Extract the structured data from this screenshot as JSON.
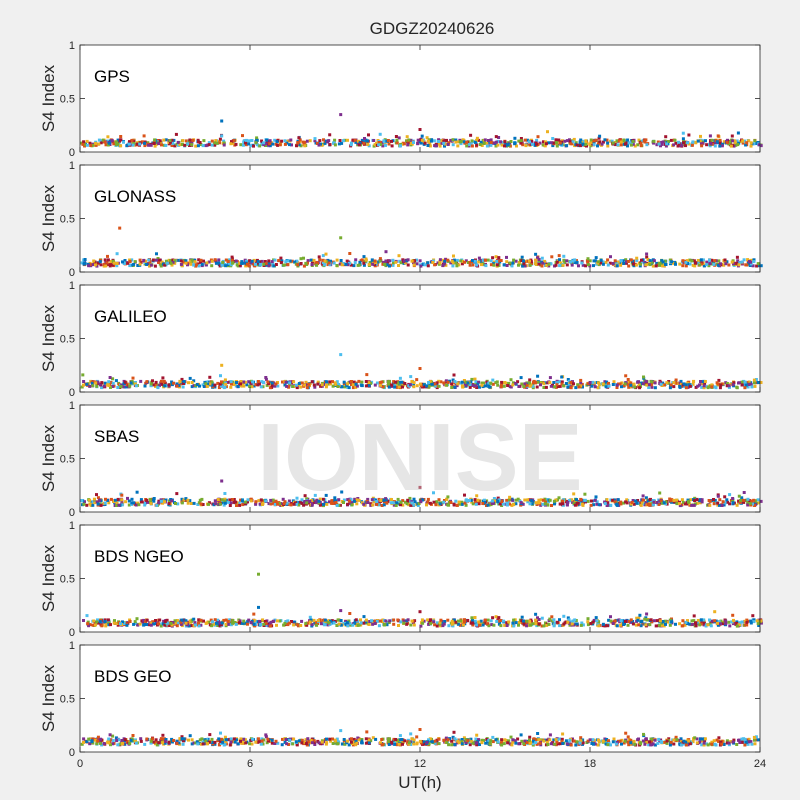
{
  "figure": {
    "title": "GDGZ20240626",
    "watermark": "IONISE",
    "xlabel": "UT(h)"
  },
  "chart_data": {
    "type": "scatter",
    "title": "GDGZ20240626",
    "xlabel": "UT(h)",
    "ylabel": "S4 Index",
    "xlim": [
      0,
      24
    ],
    "ylim": [
      0,
      1
    ],
    "xticks": [
      "0",
      "6",
      "12",
      "18",
      "24"
    ],
    "yticks": [
      "0",
      "0.5",
      "1"
    ],
    "grid": false,
    "colors": [
      "#0072BD",
      "#D95319",
      "#EDB120",
      "#7E2F8E",
      "#77AC30",
      "#4DBEEE",
      "#A2142F"
    ],
    "panels": [
      {
        "label": "GPS",
        "baseline": 0.085,
        "outliers": [
          {
            "x": 5.0,
            "y": 0.29
          },
          {
            "x": 9.2,
            "y": 0.35
          },
          {
            "x": 12.0,
            "y": 0.21
          },
          {
            "x": 16.5,
            "y": 0.19
          },
          {
            "x": 5.0,
            "y": 0.15
          }
        ]
      },
      {
        "label": "GLONASS",
        "baseline": 0.085,
        "outliers": [
          {
            "x": 1.4,
            "y": 0.41
          },
          {
            "x": 9.2,
            "y": 0.32
          },
          {
            "x": 2.7,
            "y": 0.17
          },
          {
            "x": 10.8,
            "y": 0.19
          }
        ]
      },
      {
        "label": "GALILEO",
        "baseline": 0.07,
        "outliers": [
          {
            "x": 5.0,
            "y": 0.25
          },
          {
            "x": 9.2,
            "y": 0.35
          },
          {
            "x": 12.0,
            "y": 0.22
          },
          {
            "x": 0.1,
            "y": 0.16
          },
          {
            "x": 17.0,
            "y": 0.14
          }
        ]
      },
      {
        "label": "SBAS",
        "baseline": 0.09,
        "outliers": [
          {
            "x": 5.0,
            "y": 0.29
          },
          {
            "x": 12.0,
            "y": 0.23
          }
        ]
      },
      {
        "label": "BDS NGEO",
        "baseline": 0.085,
        "outliers": [
          {
            "x": 6.3,
            "y": 0.54
          },
          {
            "x": 6.3,
            "y": 0.23
          },
          {
            "x": 9.2,
            "y": 0.2
          },
          {
            "x": 12.0,
            "y": 0.19
          },
          {
            "x": 22.4,
            "y": 0.19
          }
        ]
      },
      {
        "label": "BDS GEO",
        "baseline": 0.095,
        "outliers": [
          {
            "x": 9.2,
            "y": 0.2
          },
          {
            "x": 12.0,
            "y": 0.21
          }
        ]
      }
    ]
  }
}
